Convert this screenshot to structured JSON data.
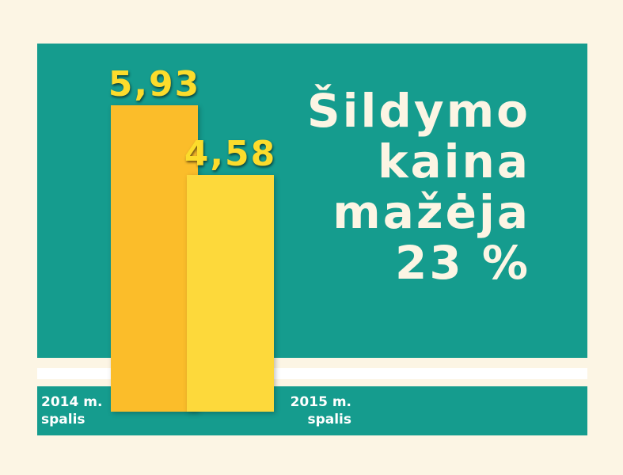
{
  "chart_data": {
    "type": "bar",
    "title": "Šildymo kaina mažėja 23 %",
    "categories": [
      "2014 m. spalis",
      "2015 m. spalis"
    ],
    "values": [
      5.93,
      4.58
    ],
    "value_labels": [
      "5,93",
      "4,58"
    ],
    "colors": [
      "#fbbd2a",
      "#fdd93b"
    ]
  }
}
